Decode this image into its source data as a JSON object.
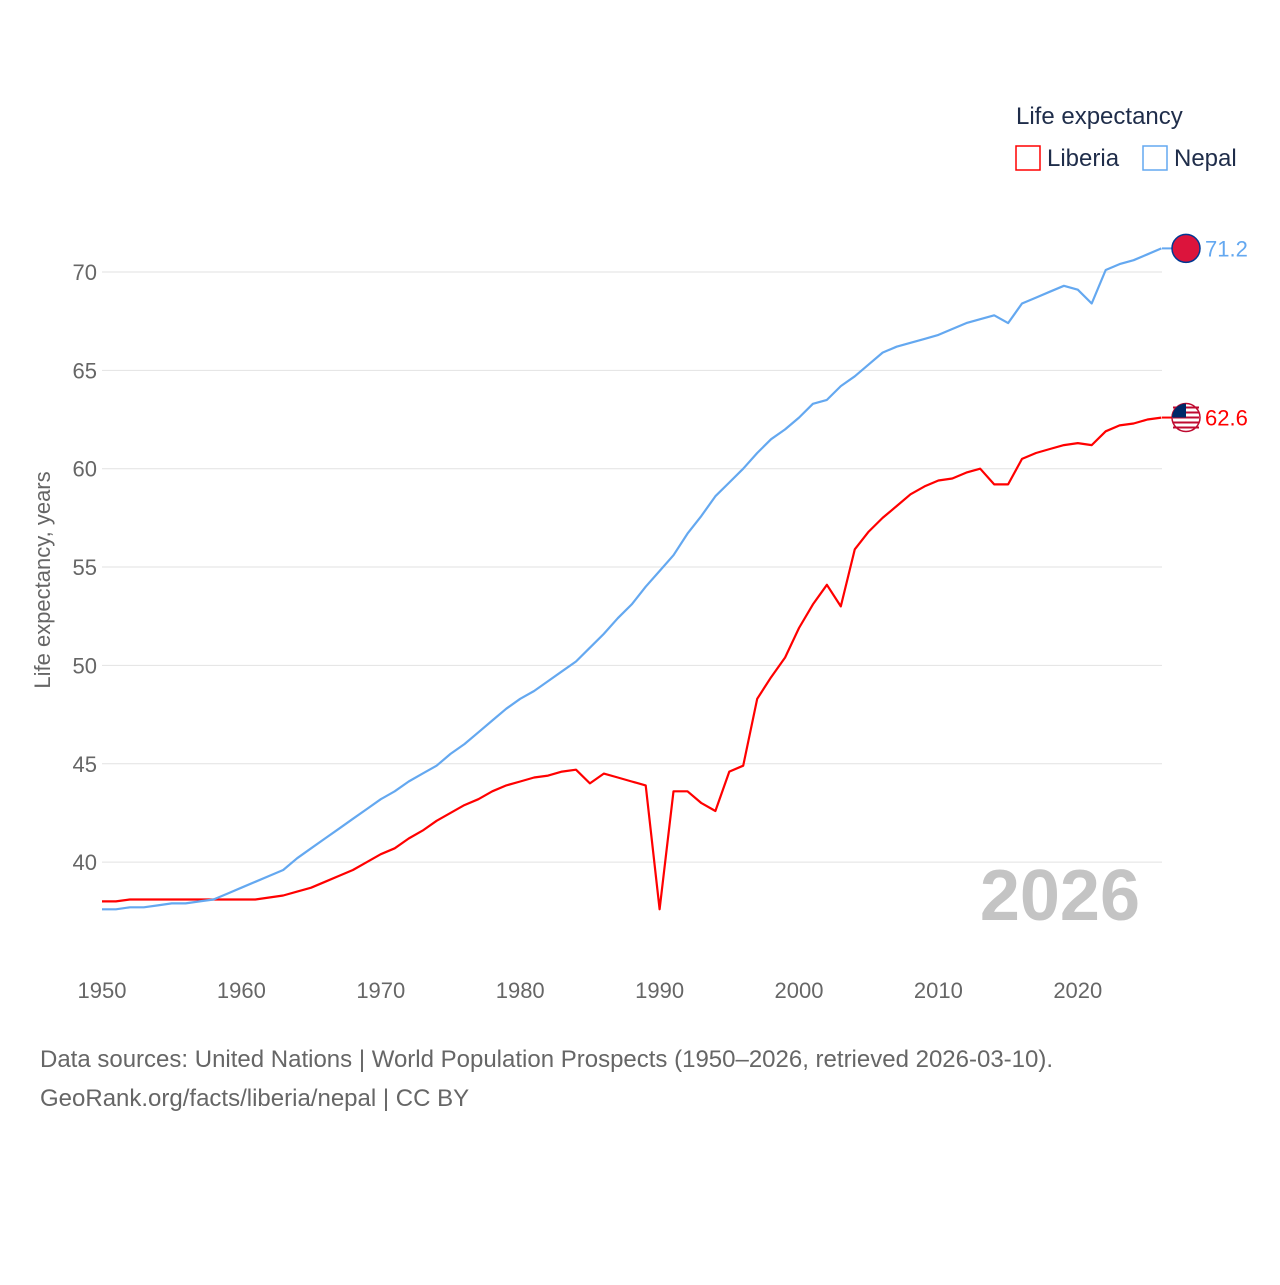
{
  "chart_data": {
    "type": "line",
    "ylabel": "Life expectancy, years",
    "ylim": [
      35,
      73
    ],
    "xlim": [
      1950,
      2026
    ],
    "yticks": [
      40,
      45,
      50,
      55,
      60,
      65,
      70
    ],
    "xticks": [
      1950,
      1960,
      1970,
      1980,
      1990,
      2000,
      2010,
      2020
    ],
    "legend_title": "Life expectancy",
    "legend_position": "top-right",
    "year_label": "2026",
    "grid": true,
    "x": [
      1950,
      1951,
      1952,
      1953,
      1954,
      1955,
      1956,
      1957,
      1958,
      1959,
      1960,
      1961,
      1962,
      1963,
      1964,
      1965,
      1966,
      1967,
      1968,
      1969,
      1970,
      1971,
      1972,
      1973,
      1974,
      1975,
      1976,
      1977,
      1978,
      1979,
      1980,
      1981,
      1982,
      1983,
      1984,
      1985,
      1986,
      1987,
      1988,
      1989,
      1990,
      1991,
      1992,
      1993,
      1994,
      1995,
      1996,
      1997,
      1998,
      1999,
      2000,
      2001,
      2002,
      2003,
      2004,
      2005,
      2006,
      2007,
      2008,
      2009,
      2010,
      2011,
      2012,
      2013,
      2014,
      2015,
      2016,
      2017,
      2018,
      2019,
      2020,
      2021,
      2022,
      2023,
      2024,
      2025,
      2026
    ],
    "series": [
      {
        "name": "Liberia",
        "color": "#ff0000",
        "end_label": "62.6",
        "values": [
          38.0,
          38.0,
          38.1,
          38.1,
          38.1,
          38.1,
          38.1,
          38.1,
          38.1,
          38.1,
          38.1,
          38.1,
          38.2,
          38.3,
          38.5,
          38.7,
          39.0,
          39.3,
          39.6,
          40.0,
          40.4,
          40.7,
          41.2,
          41.6,
          42.1,
          42.5,
          42.9,
          43.2,
          43.6,
          43.9,
          44.1,
          44.3,
          44.4,
          44.6,
          44.7,
          44.0,
          44.5,
          44.3,
          44.1,
          43.9,
          37.6,
          43.6,
          43.6,
          43.0,
          42.6,
          44.6,
          44.9,
          48.3,
          49.4,
          50.4,
          51.9,
          53.1,
          54.1,
          53.0,
          55.9,
          56.8,
          57.5,
          58.1,
          58.7,
          59.1,
          59.4,
          59.5,
          59.8,
          60.0,
          59.2,
          59.2,
          60.5,
          60.8,
          61.0,
          61.2,
          61.3,
          61.2,
          61.9,
          62.2,
          62.3,
          62.5,
          62.6
        ]
      },
      {
        "name": "Nepal",
        "color": "#64a8f0",
        "end_label": "71.2",
        "values": [
          37.6,
          37.6,
          37.7,
          37.7,
          37.8,
          37.9,
          37.9,
          38.0,
          38.1,
          38.4,
          38.7,
          39.0,
          39.3,
          39.6,
          40.2,
          40.7,
          41.2,
          41.7,
          42.2,
          42.7,
          43.2,
          43.6,
          44.1,
          44.5,
          44.9,
          45.5,
          46.0,
          46.6,
          47.2,
          47.8,
          48.3,
          48.7,
          49.2,
          49.7,
          50.2,
          50.9,
          51.6,
          52.4,
          53.1,
          54.0,
          54.8,
          55.6,
          56.7,
          57.6,
          58.6,
          59.3,
          60.0,
          60.8,
          61.5,
          62.0,
          62.6,
          63.3,
          63.5,
          64.2,
          64.7,
          65.3,
          65.9,
          66.2,
          66.4,
          66.6,
          66.8,
          67.1,
          67.4,
          67.6,
          67.8,
          67.4,
          68.4,
          68.7,
          69.0,
          69.3,
          69.1,
          68.4,
          70.1,
          70.4,
          70.6,
          70.9,
          71.2
        ]
      }
    ]
  },
  "footer": {
    "sources": "Data sources: United Nations | World Population Prospects (1950–2026, retrieved 2026-03-10).",
    "credit": "GeoRank.org/facts/liberia/nepal | CC BY"
  }
}
